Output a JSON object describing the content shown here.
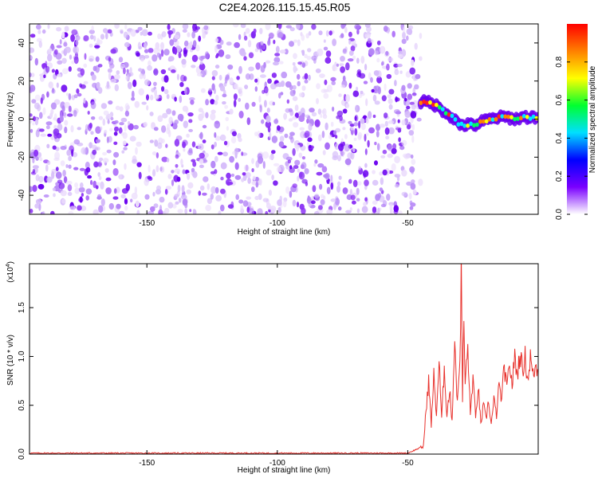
{
  "title": "C2E4.2026.115.15.45.R05",
  "colors": {
    "snr_line": "#e8312c",
    "axis": "#000000",
    "speckle": [
      "#6a00f0",
      "#8a2ff5",
      "#b586f7",
      "#d6bdfa",
      "#ebdcfc"
    ]
  },
  "chart_data": [
    {
      "type": "heatmap",
      "xlabel": "Height of straight line (km)",
      "ylabel": "Frequency (Hz)",
      "xlim": [
        -195,
        0
      ],
      "ylim": [
        -50,
        50
      ],
      "x_ticks": [
        -150,
        -100,
        -50
      ],
      "y_ticks": [
        -40,
        -20,
        0,
        20,
        40
      ],
      "colorbar": {
        "label": "Normalized spectral amplitude",
        "range": [
          0,
          1
        ],
        "ticks": [
          "0.0",
          "0.2",
          "0.4",
          "0.6",
          "0.8"
        ],
        "colormap": [
          "#ffffff",
          "#7a00ff",
          "#0000ff",
          "#00e0ff",
          "#00ff30",
          "#ffff00",
          "#ff8000",
          "#ff0000"
        ]
      },
      "noise_region": {
        "x_range": [
          -195,
          -45
        ],
        "freq_range": [
          -50,
          50
        ],
        "level": "low"
      },
      "signal_track": {
        "x": [
          -45,
          -42,
          -39,
          -36,
          -33,
          -30,
          -27,
          -24,
          -21,
          -18,
          -15,
          -12,
          -9,
          -6,
          -3,
          0
        ],
        "freq": [
          9,
          9,
          7,
          4,
          1,
          -3,
          -3,
          -3,
          -1,
          0,
          1,
          1,
          0,
          1,
          1,
          1
        ]
      }
    },
    {
      "type": "line",
      "xlabel": "Height of straight line (km)",
      "ylabel": "SNR (10 * v/v)",
      "yscale_label": "(x10",
      "yscale_exp": "4",
      "xlim": [
        -195,
        0
      ],
      "ylim": [
        0,
        1.95
      ],
      "x_ticks": [
        -150,
        -100,
        -50
      ],
      "y_ticks": [
        "0.0",
        "0.5",
        "1.0",
        "1.5"
      ],
      "series": [
        {
          "x": [
            -195,
            -50,
            -44,
            -43,
            -42,
            -41,
            -40,
            -39,
            -38,
            -37,
            -36,
            -35,
            -34,
            -33,
            -32,
            -31,
            -30,
            -29.5,
            -29,
            -28.5,
            -28,
            -27,
            -26,
            -25,
            -24,
            -23,
            -22,
            -21,
            -20,
            -19,
            -18,
            -17,
            -16,
            -15,
            -14,
            -13,
            -12,
            -11,
            -10,
            -9,
            -8,
            -7,
            -6,
            -5,
            -4,
            -3,
            -2,
            -1,
            0
          ],
          "values": [
            0.01,
            0.01,
            0.08,
            0.45,
            0.75,
            0.3,
            0.8,
            0.4,
            0.95,
            0.35,
            0.9,
            0.4,
            0.65,
            0.35,
            1.2,
            0.5,
            1.0,
            1.92,
            0.55,
            1.4,
            0.7,
            1.1,
            0.4,
            0.8,
            0.35,
            0.7,
            0.3,
            0.5,
            0.35,
            0.55,
            0.3,
            0.55,
            0.4,
            0.7,
            0.55,
            0.9,
            0.65,
            0.95,
            0.7,
            1.0,
            0.8,
            1.05,
            0.85,
            1.0,
            0.75,
            1.0,
            0.8,
            0.9,
            0.85
          ]
        }
      ]
    }
  ]
}
